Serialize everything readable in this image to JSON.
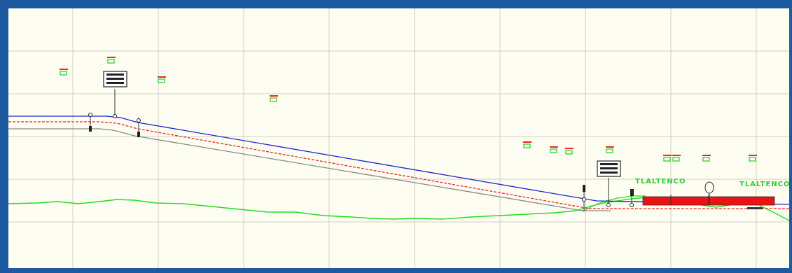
{
  "canvas": {
    "background": "#fdfdf2",
    "frame_color": "#1e5aa0",
    "grid_color": "#d0d0c4"
  },
  "profile": {
    "rail_color": "#2222cc",
    "axis_color": "#ee2222",
    "beam_color": "#888888",
    "terrain_color": "#22dd22"
  },
  "stations": [
    {
      "label": "TLALTENCO",
      "color": "#33cc33"
    },
    {
      "label": "TLALTENCO",
      "color": "#33cc33"
    }
  ],
  "station_block": {
    "color": "#ee1111"
  },
  "icons": {
    "signal_board": "signal-board-icon",
    "green_marker": "green-marker-icon",
    "tree": "tree-icon"
  }
}
